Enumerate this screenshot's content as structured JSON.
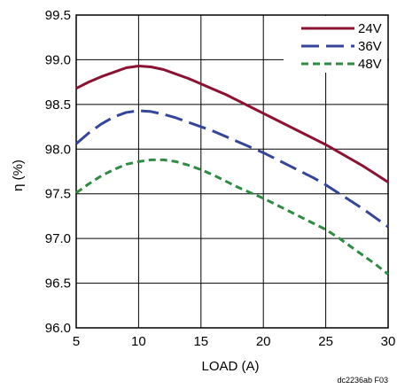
{
  "figure_id": "dc2236ab F03",
  "colors": {
    "24V": "#8b1232",
    "36V": "#34459a",
    "48V": "#2f8a43",
    "grid": "#000000"
  },
  "chart_data": {
    "type": "line",
    "title": "",
    "xlabel": "LOAD (A)",
    "ylabel": "η (%)",
    "xlim": [
      5,
      30
    ],
    "ylim": [
      96.0,
      99.5
    ],
    "xticks": [
      "5",
      "10",
      "15",
      "20",
      "25",
      "30"
    ],
    "yticks": [
      "99.5",
      "99.0",
      "98.5",
      "98.0",
      "97.5",
      "97.0",
      "96.5",
      "96.0"
    ],
    "grid": true,
    "legend_position": "top-right",
    "series": [
      {
        "name": "24V",
        "style": "solid",
        "x": [
          5,
          6,
          7,
          8,
          9,
          10,
          11,
          12,
          13,
          14,
          15,
          16,
          17,
          18,
          19,
          20,
          21,
          22,
          23,
          24,
          25,
          26,
          27,
          28,
          29,
          30
        ],
        "y": [
          98.68,
          98.75,
          98.81,
          98.86,
          98.91,
          98.93,
          98.92,
          98.89,
          98.84,
          98.79,
          98.73,
          98.67,
          98.61,
          98.54,
          98.47,
          98.4,
          98.33,
          98.26,
          98.19,
          98.12,
          98.05,
          97.97,
          97.89,
          97.81,
          97.72,
          97.63
        ]
      },
      {
        "name": "36V",
        "style": "dashed",
        "x": [
          5,
          6,
          7,
          8,
          9,
          10,
          11,
          12,
          13,
          14,
          15,
          16,
          17,
          18,
          19,
          20,
          21,
          22,
          23,
          24,
          25,
          26,
          27,
          28,
          29,
          30
        ],
        "y": [
          98.06,
          98.18,
          98.28,
          98.36,
          98.41,
          98.43,
          98.42,
          98.39,
          98.35,
          98.3,
          98.25,
          98.2,
          98.14,
          98.08,
          98.02,
          97.96,
          97.89,
          97.82,
          97.75,
          97.68,
          97.6,
          97.51,
          97.42,
          97.33,
          97.23,
          97.13
        ]
      },
      {
        "name": "48V",
        "style": "short-dashed",
        "x": [
          5,
          6,
          7,
          8,
          9,
          10,
          11,
          12,
          13,
          14,
          15,
          16,
          17,
          18,
          19,
          20,
          21,
          22,
          23,
          24,
          25,
          26,
          27,
          28,
          29,
          30
        ],
        "y": [
          97.51,
          97.61,
          97.7,
          97.77,
          97.83,
          97.86,
          97.88,
          97.88,
          97.86,
          97.82,
          97.77,
          97.71,
          97.64,
          97.57,
          97.51,
          97.45,
          97.38,
          97.31,
          97.24,
          97.17,
          97.1,
          97.01,
          96.91,
          96.81,
          96.71,
          96.6
        ]
      }
    ]
  }
}
